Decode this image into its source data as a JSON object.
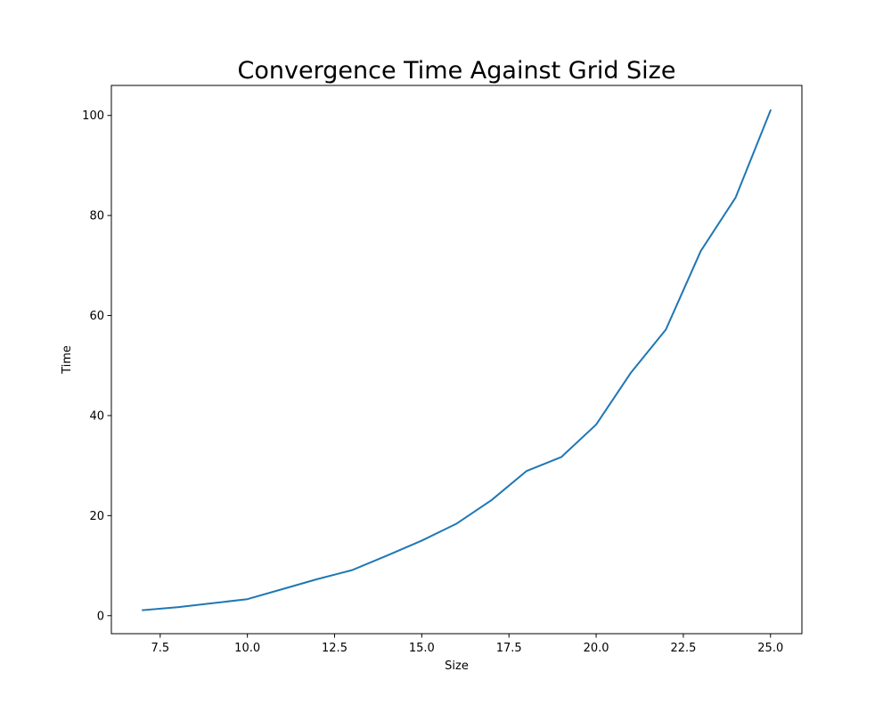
{
  "chart_data": {
    "type": "line",
    "title": "Convergence Time Against Grid Size",
    "xlabel": "Size",
    "ylabel": "Time",
    "xlim": [
      6.1,
      25.9
    ],
    "ylim": [
      -3.6,
      106.0
    ],
    "x_ticks": [
      7.5,
      10.0,
      12.5,
      15.0,
      17.5,
      20.0,
      22.5,
      25.0
    ],
    "x_tick_labels": [
      "7.5",
      "10.0",
      "12.5",
      "15.0",
      "17.5",
      "20.0",
      "22.5",
      "25.0"
    ],
    "y_ticks": [
      0,
      20,
      40,
      60,
      80,
      100
    ],
    "y_tick_labels": [
      "0",
      "20",
      "40",
      "60",
      "80",
      "100"
    ],
    "grid": false,
    "series": [
      {
        "color": "#1f77b4",
        "x": [
          7,
          8,
          9,
          10,
          11,
          12,
          13,
          14,
          15,
          16,
          17,
          18,
          19,
          20,
          21,
          22,
          23,
          24,
          25
        ],
        "y": [
          1.1,
          1.7,
          2.5,
          3.3,
          5.3,
          7.3,
          9.1,
          12.0,
          15.0,
          18.4,
          23.1,
          28.9,
          31.7,
          38.2,
          48.6,
          57.2,
          72.9,
          83.6,
          101.0
        ]
      }
    ]
  }
}
